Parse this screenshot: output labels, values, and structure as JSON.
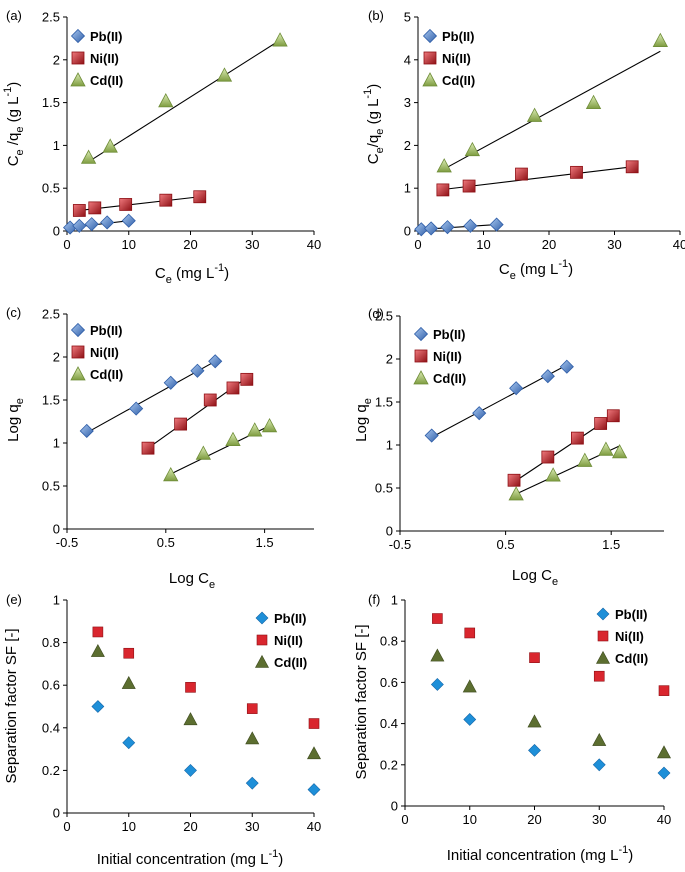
{
  "figure": {
    "description_colors": {
      "pb": "#5b8fd6",
      "pb_dark": "#2f5ea8",
      "ni": "#d9262e",
      "ni_dark": "#8e1015",
      "cd": "#b3d17a",
      "cd_dark": "#6f8d38",
      "pb_diamond": "#1e8fd8",
      "cd_tri_dark": "#5c6e30",
      "line": "#000000"
    }
  },
  "chart_data": [
    {
      "id": "a",
      "label": "(a)",
      "type": "scatter",
      "xlabel": {
        "main": "C",
        "sub": "e",
        "rest": " (mg L",
        "sup": "-1",
        "end": ")"
      },
      "ylabel": {
        "p1": "C",
        "s1": "e",
        "p2": " /q",
        "s2": "e",
        "p3": " (g L",
        "sup": "-1",
        "p4": ")"
      },
      "xlim": [
        0,
        40
      ],
      "ylim": [
        0,
        2.5
      ],
      "xticks": [
        0,
        10,
        20,
        30,
        40
      ],
      "yticks": [
        0,
        0.5,
        1,
        1.5,
        2,
        2.5
      ],
      "xtick_labels": [
        "0",
        "10",
        "20",
        "30",
        "40"
      ],
      "ytick_labels": [
        "0",
        "0.5",
        "1",
        "1.5",
        "2",
        "2.5"
      ],
      "legend": [
        "Pb(II)",
        "Ni(II)",
        "Cd(II)"
      ],
      "series": [
        {
          "name": "Pb(II)",
          "marker": "diamond3d",
          "x": [
            0.5,
            2,
            4,
            6.5,
            10
          ],
          "y": [
            0.04,
            0.06,
            0.08,
            0.1,
            0.12
          ],
          "fit": [
            [
              0,
              0.035
            ],
            [
              10,
              0.12
            ]
          ]
        },
        {
          "name": "Ni(II)",
          "marker": "square3d",
          "x": [
            2,
            4.5,
            9.5,
            16,
            21.5
          ],
          "y": [
            0.24,
            0.27,
            0.31,
            0.36,
            0.4
          ],
          "fit": [
            [
              2,
              0.24
            ],
            [
              21.5,
              0.4
            ]
          ]
        },
        {
          "name": "Cd(II)",
          "marker": "triangle3d",
          "x": [
            3.5,
            7,
            16,
            25.5,
            34.5
          ],
          "y": [
            0.86,
            0.99,
            1.52,
            1.82,
            2.23
          ],
          "fit": [
            [
              3.5,
              0.81
            ],
            [
              34.5,
              2.23
            ]
          ]
        }
      ]
    },
    {
      "id": "b",
      "label": "(b)",
      "type": "scatter",
      "xlabel": {
        "main": "C",
        "sub": "e",
        "rest": " (mg L",
        "sup": "-1",
        "end": ")"
      },
      "ylabel": {
        "p1": "C",
        "s1": "e",
        "p2": "/q",
        "s2": "e",
        "p3": " (g L",
        "sup": "-1",
        "p4": ")"
      },
      "xlim": [
        0,
        40
      ],
      "ylim": [
        0,
        5
      ],
      "xticks": [
        0,
        10,
        20,
        30,
        40
      ],
      "yticks": [
        0,
        1,
        2,
        3,
        4,
        5
      ],
      "xtick_labels": [
        "0",
        "10",
        "20",
        "30",
        "40"
      ],
      "ytick_labels": [
        "0",
        "1",
        "2",
        "3",
        "4",
        "5"
      ],
      "legend": [
        "Pb(II)",
        "Ni(II)",
        "Cd(II)"
      ],
      "series": [
        {
          "name": "Pb(II)",
          "marker": "diamond3d",
          "x": [
            0.5,
            2,
            4.5,
            8,
            12
          ],
          "y": [
            0.04,
            0.06,
            0.09,
            0.12,
            0.15
          ],
          "fit": [
            [
              0,
              0.03
            ],
            [
              12,
              0.15
            ]
          ]
        },
        {
          "name": "Ni(II)",
          "marker": "square3d",
          "x": [
            3.8,
            7.8,
            15.8,
            24.2,
            32.7
          ],
          "y": [
            0.96,
            1.05,
            1.33,
            1.37,
            1.5
          ],
          "fit": [
            [
              3.8,
              0.97
            ],
            [
              32.7,
              1.5
            ]
          ]
        },
        {
          "name": "Cd(II)",
          "marker": "triangle3d",
          "x": [
            4,
            8.3,
            17.8,
            26.8,
            37
          ],
          "y": [
            1.52,
            1.9,
            2.7,
            3.0,
            4.45
          ],
          "fit": [
            [
              4,
              1.45
            ],
            [
              37,
              4.2
            ]
          ]
        }
      ]
    },
    {
      "id": "c",
      "label": "(c)",
      "type": "scatter",
      "xlabel": {
        "main": "Log C",
        "sub": "e"
      },
      "ylabel": {
        "main": "Log q",
        "sub": "e"
      },
      "xlim": [
        -0.5,
        2
      ],
      "ylim": [
        0,
        2.5
      ],
      "xticks": [
        -0.5,
        0.5,
        1.5
      ],
      "yticks": [
        0,
        0.5,
        1,
        1.5,
        2,
        2.5
      ],
      "xtick_labels": [
        "-0.5",
        "0.5",
        "1.5"
      ],
      "ytick_labels": [
        "0",
        "0.5",
        "1",
        "1.5",
        "2",
        "2.5"
      ],
      "legend": [
        "Pb(II)",
        "Ni(II)",
        "Cd(II)"
      ],
      "series": [
        {
          "name": "Pb(II)",
          "marker": "diamond3d",
          "x": [
            -0.3,
            0.2,
            0.55,
            0.82,
            1.0
          ],
          "y": [
            1.14,
            1.4,
            1.7,
            1.84,
            1.95
          ],
          "fit": [
            [
              -0.3,
              1.12
            ],
            [
              1.0,
              1.95
            ]
          ]
        },
        {
          "name": "Ni(II)",
          "marker": "square3d",
          "x": [
            0.32,
            0.65,
            0.95,
            1.18,
            1.32
          ],
          "y": [
            0.94,
            1.22,
            1.5,
            1.64,
            1.74
          ],
          "fit": [
            [
              0.32,
              0.94
            ],
            [
              1.32,
              1.76
            ]
          ]
        },
        {
          "name": "Cd(II)",
          "marker": "triangle3d",
          "x": [
            0.55,
            0.88,
            1.18,
            1.4,
            1.55
          ],
          "y": [
            0.63,
            0.88,
            1.04,
            1.15,
            1.2
          ],
          "fit": [
            [
              0.55,
              0.64
            ],
            [
              1.55,
              1.2
            ]
          ]
        }
      ]
    },
    {
      "id": "d",
      "label": "(d)",
      "type": "scatter",
      "xlabel": {
        "main": "Log C",
        "sub": "e"
      },
      "ylabel": {
        "main": "Log q",
        "sub": "e"
      },
      "xlim": [
        -0.5,
        2
      ],
      "ylim": [
        0,
        2.5
      ],
      "xticks": [
        -0.5,
        0.5,
        1.5
      ],
      "yticks": [
        0,
        0.5,
        1,
        1.5,
        2,
        2.5
      ],
      "xtick_labels": [
        "-0.5",
        "0.5",
        "1.5"
      ],
      "ytick_labels": [
        "0",
        "0.5",
        "1",
        "1.5",
        "2",
        "2.5"
      ],
      "legend": [
        "Pb(II)",
        "Ni(II)",
        "Cd(II)"
      ],
      "series": [
        {
          "name": "Pb(II)",
          "marker": "diamond3d",
          "x": [
            -0.2,
            0.25,
            0.6,
            0.9,
            1.08
          ],
          "y": [
            1.11,
            1.37,
            1.66,
            1.8,
            1.91
          ],
          "fit": [
            [
              -0.2,
              1.09
            ],
            [
              1.08,
              1.93
            ]
          ]
        },
        {
          "name": "Ni(II)",
          "marker": "square3d",
          "x": [
            0.58,
            0.9,
            1.18,
            1.4,
            1.52
          ],
          "y": [
            0.59,
            0.86,
            1.08,
            1.25,
            1.34
          ],
          "fit": [
            [
              0.58,
              0.57
            ],
            [
              1.52,
              1.34
            ]
          ]
        },
        {
          "name": "Cd(II)",
          "marker": "triangle3d",
          "x": [
            0.6,
            0.95,
            1.25,
            1.45,
            1.58
          ],
          "y": [
            0.43,
            0.65,
            0.82,
            0.95,
            0.92
          ],
          "fit": [
            [
              0.6,
              0.43
            ],
            [
              1.58,
              0.99
            ]
          ]
        }
      ]
    },
    {
      "id": "e",
      "label": "(e)",
      "type": "scatter",
      "xlabel": {
        "main": "Initial concentration (mg L",
        "sup": "-1",
        "end": ")"
      },
      "ylabel": {
        "main": "Separation factor SF [-]"
      },
      "xlim": [
        0,
        40
      ],
      "ylim": [
        0,
        1
      ],
      "xticks": [
        0,
        10,
        20,
        30,
        40
      ],
      "yticks": [
        0,
        0.2,
        0.4,
        0.6,
        0.8,
        1
      ],
      "xtick_labels": [
        "0",
        "10",
        "20",
        "30",
        "40"
      ],
      "ytick_labels": [
        "0",
        "0.2",
        "0.4",
        "0.6",
        "0.8",
        "1"
      ],
      "legend": [
        "Pb(II)",
        "Ni(II)",
        "Cd(II)"
      ],
      "series": [
        {
          "name": "Pb(II)",
          "marker": "diamond",
          "x": [
            5,
            10,
            20,
            30,
            40
          ],
          "y": [
            0.5,
            0.33,
            0.2,
            0.14,
            0.11
          ]
        },
        {
          "name": "Ni(II)",
          "marker": "square",
          "x": [
            5,
            10,
            20,
            30,
            40
          ],
          "y": [
            0.85,
            0.75,
            0.59,
            0.49,
            0.42
          ]
        },
        {
          "name": "Cd(II)",
          "marker": "triangle",
          "x": [
            5,
            10,
            20,
            30,
            40
          ],
          "y": [
            0.76,
            0.61,
            0.44,
            0.35,
            0.28
          ]
        }
      ]
    },
    {
      "id": "f",
      "label": "(f)",
      "type": "scatter",
      "xlabel": {
        "main": "Initial concentration (mg L",
        "sup": "-1",
        "end": ")"
      },
      "ylabel": {
        "main": "Separation factor SF [-]"
      },
      "xlim": [
        0,
        40
      ],
      "ylim": [
        0,
        1
      ],
      "xticks": [
        0,
        10,
        20,
        30,
        40
      ],
      "yticks": [
        0,
        0.2,
        0.4,
        0.6,
        0.8,
        1
      ],
      "xtick_labels": [
        "0",
        "10",
        "20",
        "30",
        "40"
      ],
      "ytick_labels": [
        "0",
        "0.2",
        "0.4",
        "0.6",
        "0.8",
        "1"
      ],
      "legend": [
        "Pb(II)",
        "Ni(II)",
        "Cd(II)"
      ],
      "series": [
        {
          "name": "Pb(II)",
          "marker": "diamond",
          "x": [
            5,
            10,
            20,
            30,
            40
          ],
          "y": [
            0.59,
            0.42,
            0.27,
            0.2,
            0.16
          ]
        },
        {
          "name": "Ni(II)",
          "marker": "square",
          "x": [
            5,
            10,
            20,
            30,
            40
          ],
          "y": [
            0.91,
            0.84,
            0.72,
            0.63,
            0.56
          ]
        },
        {
          "name": "Cd(II)",
          "marker": "triangle",
          "x": [
            5,
            10,
            20,
            30,
            40
          ],
          "y": [
            0.73,
            0.58,
            0.41,
            0.32,
            0.26
          ]
        }
      ]
    }
  ]
}
